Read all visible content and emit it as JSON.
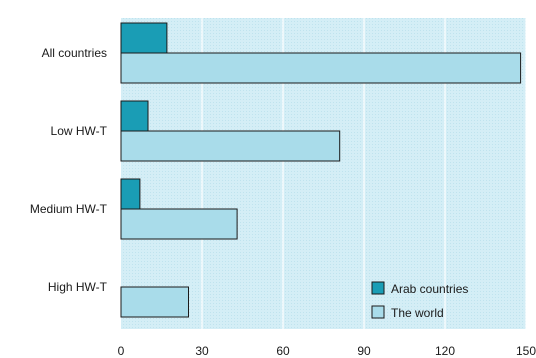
{
  "chart_data": {
    "type": "bar",
    "orientation": "horizontal",
    "categories": [
      "All countries",
      "Low HW-T",
      "Medium HW-T",
      "High HW-T"
    ],
    "series": [
      {
        "name": "Arab countries",
        "values": [
          17,
          10,
          7,
          0
        ],
        "color": "#1a9db5"
      },
      {
        "name": "The world",
        "values": [
          148,
          81,
          43,
          25
        ],
        "color": "#a9dcea"
      }
    ],
    "title": "",
    "xlabel": "",
    "ylabel": "",
    "xlim": [
      0,
      150
    ],
    "xticks": [
      "0",
      "30",
      "60",
      "90",
      "120",
      "150"
    ],
    "grid": true,
    "plot_background": "#d4eef6",
    "legend_position": "bottom-right"
  }
}
